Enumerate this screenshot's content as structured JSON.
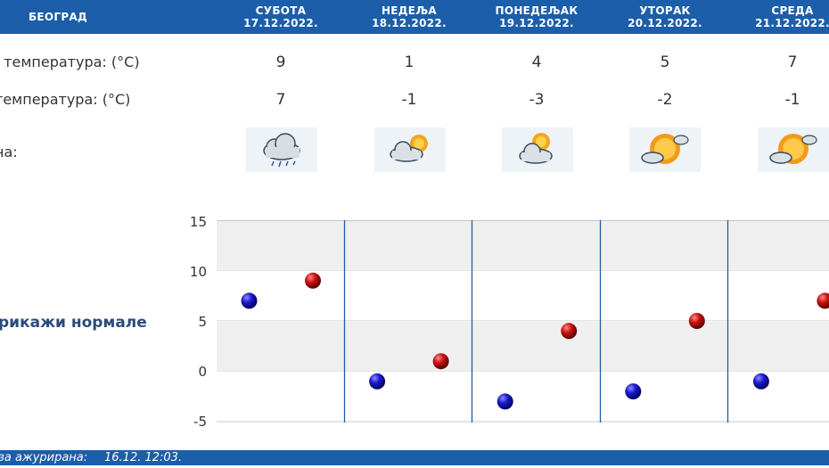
{
  "header": {
    "city": "БЕОГРАД",
    "days": [
      {
        "name": "СУБОТА",
        "date": "17.12.2022."
      },
      {
        "name": "НЕДЕЉА",
        "date": "18.12.2022."
      },
      {
        "name": "ПОНЕДЕЉАК",
        "date": "19.12.2022."
      },
      {
        "name": "УТОРАК",
        "date": "20.12.2022."
      },
      {
        "name": "СРЕДА",
        "date": "21.12.2022."
      }
    ]
  },
  "rows": {
    "max_label": ". температура: (°C)",
    "min_label": "температура: (°C)",
    "weather_label": "на:",
    "max_values": [
      "9",
      "1",
      "4",
      "5",
      "7"
    ],
    "min_values": [
      "7",
      "-1",
      "-3",
      "-2",
      "-1"
    ],
    "weather_icons": [
      "cloud-rain-icon",
      "partly-cloudy-icon",
      "partly-cloudy-icon",
      "sun-cloud-icon",
      "sun-cloud-icon"
    ]
  },
  "normals_link": "рикажи нормале",
  "chart_data": {
    "type": "scatter",
    "categories": [
      "17.12.2022.",
      "18.12.2022.",
      "19.12.2022.",
      "20.12.2022.",
      "21.12.2022."
    ],
    "ylim": [
      -5,
      15
    ],
    "yticks": [
      "15",
      "10",
      "5",
      "0",
      "-5"
    ],
    "series": [
      {
        "name": "",
        "color": "#1a1acc",
        "values": [
          7,
          -1,
          -3,
          -2,
          -1
        ]
      },
      {
        "name": "",
        "color": "#cc1111",
        "values": [
          9,
          1,
          4,
          5,
          7
        ]
      }
    ]
  },
  "footer": {
    "label": "за ажурирана:",
    "value": "16.12. 12:03."
  },
  "colors": {
    "header_bg": "#1c5ea9",
    "band_shaded": "#efefef",
    "divider": "#1d5fa5"
  }
}
